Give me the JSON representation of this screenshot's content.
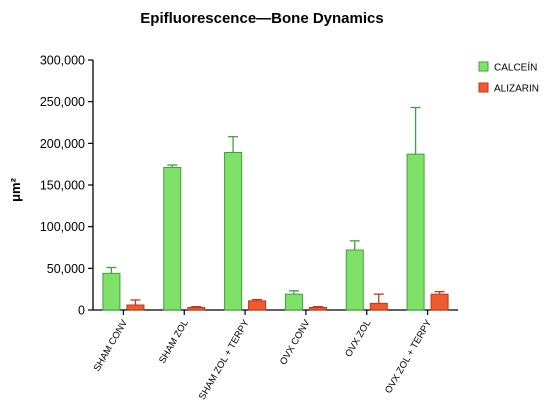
{
  "chart_data": {
    "type": "bar",
    "title": "Epifluorescence—Bone Dynamics",
    "xlabel": "",
    "ylabel": "μm²",
    "ylim": [
      0,
      300000
    ],
    "yticks": [
      0,
      50000,
      100000,
      150000,
      200000,
      250000,
      300000
    ],
    "ytick_labels": [
      "0",
      "50,000",
      "100,000",
      "150,000",
      "200,000",
      "250,000",
      "300,000"
    ],
    "categories": [
      "SHAM CONV",
      "SHAM ZOL",
      "SHAM ZOL + TERPY",
      "OVX CONV",
      "OVX ZOL",
      "OVX ZOL + TERPY"
    ],
    "series": [
      {
        "name": "CALCEÍN",
        "color": "#7fe06a",
        "stroke": "#3fa337",
        "values": [
          44000,
          171000,
          189000,
          19000,
          72000,
          187000
        ],
        "error": [
          7000,
          3000,
          19000,
          4000,
          11000,
          56000
        ]
      },
      {
        "name": "ALIZARIN",
        "color": "#ef5a2e",
        "stroke": "#b8391a",
        "values": [
          6000,
          3000,
          11000,
          3000,
          8000,
          19000
        ],
        "error": [
          6000,
          1000,
          1500,
          1000,
          11000,
          3000
        ]
      }
    ],
    "legend": "top-right",
    "grid": false
  }
}
